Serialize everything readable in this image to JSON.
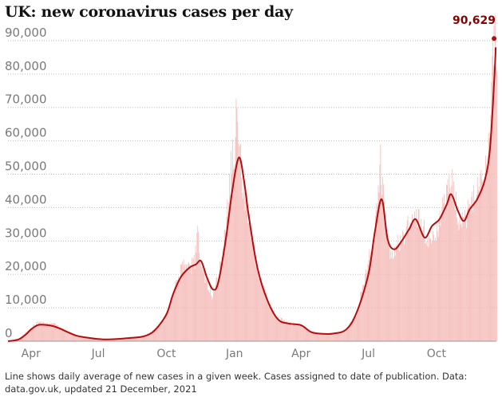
{
  "title": "UK: new coronavirus cases per day",
  "footnote": "Line shows daily average of new cases in a given week. Cases assigned to date of publication. Data: data.gov.uk, updated 21 December, 2021",
  "colors": {
    "bars": "#f4b9b6",
    "line": "#b50d0d",
    "label": "#8b0000",
    "grid": "#bdbdbd",
    "axis_text": "#7a7a7a"
  },
  "chart_data": {
    "type": "bar",
    "title": "UK: new coronavirus cases per day",
    "xlabel": "",
    "ylabel": "",
    "x_axis": {
      "type": "date",
      "range": [
        "2020-03-01",
        "2021-12-21"
      ],
      "tick_labels": [
        "Apr",
        "Jul",
        "Oct",
        "Jan",
        "Apr",
        "Jul",
        "Oct"
      ],
      "tick_dates": [
        "2020-04-01",
        "2020-07-01",
        "2020-10-01",
        "2021-01-01",
        "2021-04-01",
        "2021-07-01",
        "2021-10-01"
      ]
    },
    "y_axis": {
      "range": [
        0,
        95000
      ],
      "ticks": [
        0,
        10000,
        20000,
        30000,
        40000,
        50000,
        60000,
        70000,
        80000,
        90000
      ],
      "tick_labels": [
        "0",
        "10,000",
        "20,000",
        "30,000",
        "40,000",
        "50,000",
        "60,000",
        "70,000",
        "80,000",
        "90,000"
      ],
      "grid": true
    },
    "series": [
      {
        "kind": "bar",
        "points": [
          [
            "2020-03-01",
            50
          ],
          [
            "2020-03-15",
            900
          ],
          [
            "2020-03-25",
            2500
          ],
          [
            "2020-04-05",
            4800
          ],
          [
            "2020-04-10",
            5600
          ],
          [
            "2020-04-20",
            5200
          ],
          [
            "2020-05-01",
            5300
          ],
          [
            "2020-05-10",
            4100
          ],
          [
            "2020-05-20",
            2800
          ],
          [
            "2020-06-01",
            1700
          ],
          [
            "2020-06-15",
            1200
          ],
          [
            "2020-07-01",
            700
          ],
          [
            "2020-07-15",
            600
          ],
          [
            "2020-08-01",
            800
          ],
          [
            "2020-08-15",
            1100
          ],
          [
            "2020-09-01",
            1500
          ],
          [
            "2020-09-15",
            3600
          ],
          [
            "2020-10-01",
            7500
          ],
          [
            "2020-10-10",
            15000
          ],
          [
            "2020-10-20",
            21000
          ],
          [
            "2020-10-25",
            23500
          ],
          [
            "2020-11-01",
            22000
          ],
          [
            "2020-11-08",
            24500
          ],
          [
            "2020-11-12",
            33000
          ],
          [
            "2020-11-15",
            26000
          ],
          [
            "2020-11-25",
            17000
          ],
          [
            "2020-12-01",
            14000
          ],
          [
            "2020-12-10",
            19000
          ],
          [
            "2020-12-20",
            35000
          ],
          [
            "2020-12-29",
            57000
          ],
          [
            "2021-01-01",
            53000
          ],
          [
            "2021-01-03",
            68000
          ],
          [
            "2021-01-06",
            60000
          ],
          [
            "2021-01-12",
            48000
          ],
          [
            "2021-01-20",
            38000
          ],
          [
            "2021-02-01",
            22000
          ],
          [
            "2021-02-15",
            12000
          ],
          [
            "2021-03-01",
            7000
          ],
          [
            "2021-03-15",
            5500
          ],
          [
            "2021-04-01",
            4500
          ],
          [
            "2021-04-15",
            2800
          ],
          [
            "2021-05-01",
            2200
          ],
          [
            "2021-05-15",
            2300
          ],
          [
            "2021-06-01",
            3500
          ],
          [
            "2021-06-15",
            8500
          ],
          [
            "2021-07-01",
            24000
          ],
          [
            "2021-07-10",
            35000
          ],
          [
            "2021-07-17",
            54000
          ],
          [
            "2021-07-25",
            33000
          ],
          [
            "2021-08-01",
            25000
          ],
          [
            "2021-08-10",
            30000
          ],
          [
            "2021-08-20",
            33000
          ],
          [
            "2021-09-01",
            38000
          ],
          [
            "2021-09-10",
            37000
          ],
          [
            "2021-09-20",
            30000
          ],
          [
            "2021-10-01",
            34000
          ],
          [
            "2021-10-10",
            40000
          ],
          [
            "2021-10-20",
            49000
          ],
          [
            "2021-10-25",
            45000
          ],
          [
            "2021-11-01",
            35000
          ],
          [
            "2021-11-10",
            38000
          ],
          [
            "2021-11-20",
            44000
          ],
          [
            "2021-12-01",
            49000
          ],
          [
            "2021-12-10",
            59000
          ],
          [
            "2021-12-17",
            93000
          ],
          [
            "2021-12-20",
            90629
          ]
        ]
      },
      {
        "kind": "line",
        "points": [
          [
            "2020-03-01",
            0
          ],
          [
            "2020-03-15",
            500
          ],
          [
            "2020-03-25",
            2000
          ],
          [
            "2020-04-01",
            3500
          ],
          [
            "2020-04-10",
            4800
          ],
          [
            "2020-04-20",
            4900
          ],
          [
            "2020-05-01",
            4500
          ],
          [
            "2020-05-10",
            3800
          ],
          [
            "2020-05-20",
            2800
          ],
          [
            "2020-06-01",
            1700
          ],
          [
            "2020-06-15",
            1100
          ],
          [
            "2020-07-01",
            650
          ],
          [
            "2020-07-15",
            550
          ],
          [
            "2020-08-01",
            750
          ],
          [
            "2020-08-15",
            1000
          ],
          [
            "2020-09-01",
            1500
          ],
          [
            "2020-09-15",
            3200
          ],
          [
            "2020-10-01",
            8000
          ],
          [
            "2020-10-10",
            14000
          ],
          [
            "2020-10-20",
            19000
          ],
          [
            "2020-11-01",
            22000
          ],
          [
            "2020-11-10",
            23000
          ],
          [
            "2020-11-17",
            24000
          ],
          [
            "2020-11-25",
            19000
          ],
          [
            "2020-12-03",
            15500
          ],
          [
            "2020-12-10",
            17500
          ],
          [
            "2020-12-20",
            30000
          ],
          [
            "2020-12-29",
            45000
          ],
          [
            "2021-01-07",
            55000
          ],
          [
            "2021-01-14",
            48000
          ],
          [
            "2021-01-20",
            38000
          ],
          [
            "2021-02-01",
            22000
          ],
          [
            "2021-02-15",
            12000
          ],
          [
            "2021-03-01",
            6500
          ],
          [
            "2021-03-15",
            5300
          ],
          [
            "2021-04-01",
            4800
          ],
          [
            "2021-04-15",
            2700
          ],
          [
            "2021-05-01",
            2200
          ],
          [
            "2021-05-15",
            2300
          ],
          [
            "2021-06-01",
            3500
          ],
          [
            "2021-06-15",
            8500
          ],
          [
            "2021-07-01",
            20000
          ],
          [
            "2021-07-10",
            33000
          ],
          [
            "2021-07-19",
            42500
          ],
          [
            "2021-07-27",
            30500
          ],
          [
            "2021-08-05",
            27500
          ],
          [
            "2021-08-15",
            30000
          ],
          [
            "2021-08-25",
            33500
          ],
          [
            "2021-09-03",
            36500
          ],
          [
            "2021-09-15",
            31000
          ],
          [
            "2021-09-25",
            34500
          ],
          [
            "2021-10-05",
            36500
          ],
          [
            "2021-10-15",
            41000
          ],
          [
            "2021-10-21",
            44000
          ],
          [
            "2021-10-30",
            39000
          ],
          [
            "2021-11-07",
            36000
          ],
          [
            "2021-11-15",
            39500
          ],
          [
            "2021-11-25",
            42500
          ],
          [
            "2021-12-05",
            48000
          ],
          [
            "2021-12-12",
            57000
          ],
          [
            "2021-12-18",
            78000
          ],
          [
            "2021-12-20",
            88000
          ]
        ]
      }
    ],
    "annotations": [
      {
        "label": "90,629",
        "date": "2021-12-20",
        "value": 90629
      }
    ]
  }
}
